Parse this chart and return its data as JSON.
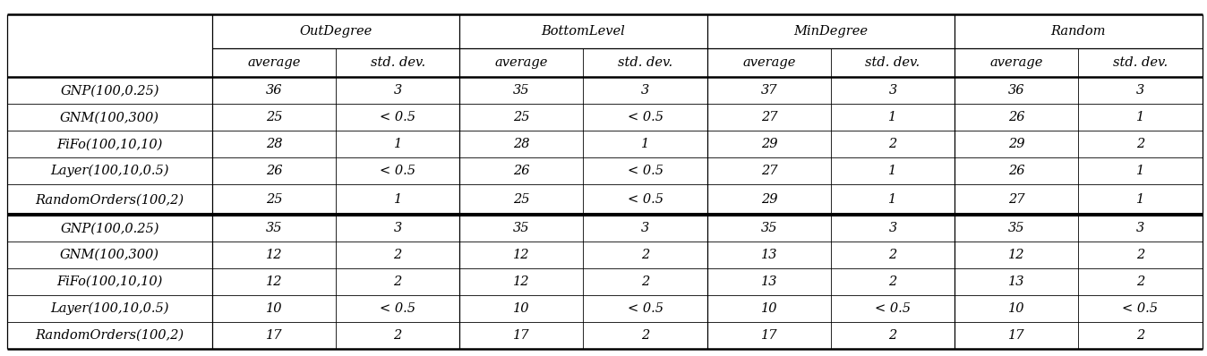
{
  "col_headers_level1": [
    "",
    "OutDegree",
    "BottomLevel",
    "MinDegree",
    "Random"
  ],
  "col_headers_level2": [
    "",
    "average",
    "std. dev.",
    "average",
    "std. dev.",
    "average",
    "std. dev.",
    "average",
    "std. dev."
  ],
  "top_rows": [
    [
      "GNP(100,0.25)",
      "36",
      "3",
      "35",
      "3",
      "37",
      "3",
      "36",
      "3"
    ],
    [
      "GNM(100,300)",
      "25",
      "< 0.5",
      "25",
      "< 0.5",
      "27",
      "1",
      "26",
      "1"
    ],
    [
      "FiFo(100,10,10)",
      "28",
      "1",
      "28",
      "1",
      "29",
      "2",
      "29",
      "2"
    ],
    [
      "Layer(100,10,0.5)",
      "26",
      "< 0.5",
      "26",
      "< 0.5",
      "27",
      "1",
      "26",
      "1"
    ],
    [
      "RandomOrders(100,2)",
      "25",
      "1",
      "25",
      "< 0.5",
      "29",
      "1",
      "27",
      "1"
    ]
  ],
  "bottom_rows": [
    [
      "GNP(100,0.25)",
      "35",
      "3",
      "35",
      "3",
      "35",
      "3",
      "35",
      "3"
    ],
    [
      "GNM(100,300)",
      "12",
      "2",
      "12",
      "2",
      "13",
      "2",
      "12",
      "2"
    ],
    [
      "FiFo(100,10,10)",
      "12",
      "2",
      "12",
      "2",
      "13",
      "2",
      "13",
      "2"
    ],
    [
      "Layer(100,10,0.5)",
      "10",
      "< 0.5",
      "10",
      "< 0.5",
      "10",
      "< 0.5",
      "10",
      "< 0.5"
    ],
    [
      "RandomOrders(100,2)",
      "17",
      "2",
      "17",
      "2",
      "17",
      "2",
      "17",
      "2"
    ]
  ],
  "group_labels": [
    "OutDegree",
    "BottomLevel",
    "MinDegree",
    "Random"
  ],
  "bg_color": "#ffffff",
  "line_color": "#000000",
  "font_size": 10.5,
  "figsize": [
    13.48,
    3.98
  ],
  "dpi": 100
}
